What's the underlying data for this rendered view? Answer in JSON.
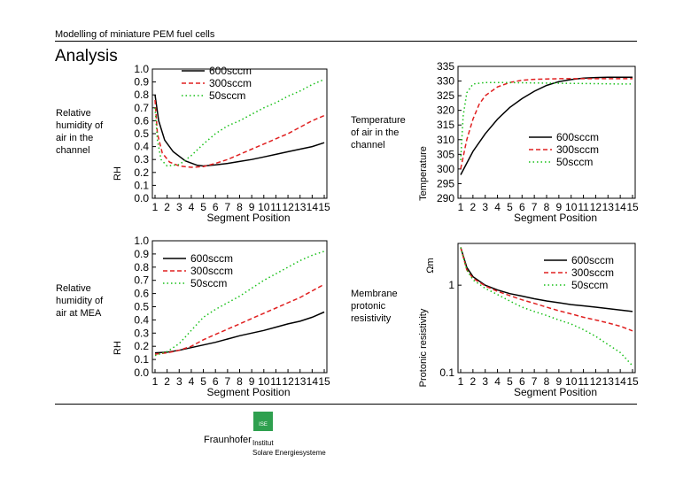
{
  "header": {
    "title": "Modelling of miniature PEM fuel cells",
    "section": "Analysis"
  },
  "descriptions": [
    "Relative\nhumidity of\nair in the\nchannel",
    "Temperature\nof air in the\nchannel",
    "Relative\nhumidity of\nair at MEA",
    "Membrane\nprotonic\nresistivity"
  ],
  "footer": {
    "brand": "Fraunhofer",
    "logo_text": "ISE",
    "institute_line1": "Institut",
    "institute_line2": "Solare Energiesysteme"
  },
  "chart_data": [
    {
      "type": "line",
      "xlabel": "Segment Position",
      "ylabel": "RH",
      "x": [
        1,
        2,
        3,
        4,
        5,
        6,
        7,
        8,
        9,
        10,
        11,
        12,
        13,
        14,
        15
      ],
      "ylim": [
        0,
        1
      ],
      "yticks": [
        0,
        0.1,
        0.2,
        0.3,
        0.4,
        0.5,
        0.6,
        0.7,
        0.8,
        0.9,
        1.0
      ],
      "ytick_labels": [
        "0.0",
        "0.1",
        "0.2",
        "0.3",
        "0.4",
        "0.5",
        "0.6",
        "0.7",
        "0.8",
        "0.9",
        "1.0"
      ],
      "legend": "top-right",
      "series": [
        {
          "name": "600sccm",
          "color": "#000000",
          "dash": "",
          "points": [
            [
              1,
              0.8
            ],
            [
              1.3,
              0.6
            ],
            [
              1.8,
              0.45
            ],
            [
              2.5,
              0.36
            ],
            [
              3.5,
              0.29
            ],
            [
              4.5,
              0.255
            ],
            [
              5,
              0.25
            ],
            [
              6,
              0.258
            ],
            [
              7,
              0.27
            ],
            [
              8,
              0.285
            ],
            [
              9,
              0.3
            ],
            [
              10,
              0.32
            ],
            [
              11,
              0.34
            ],
            [
              12,
              0.36
            ],
            [
              13,
              0.38
            ],
            [
              14,
              0.4
            ],
            [
              15,
              0.43
            ]
          ]
        },
        {
          "name": "300sccm",
          "color": "#e02020",
          "dash": "5,3",
          "points": [
            [
              1,
              0.76
            ],
            [
              1.2,
              0.5
            ],
            [
              1.6,
              0.35
            ],
            [
              2.2,
              0.28
            ],
            [
              3,
              0.25
            ],
            [
              4,
              0.24
            ],
            [
              5,
              0.245
            ],
            [
              6,
              0.27
            ],
            [
              7,
              0.3
            ],
            [
              8,
              0.34
            ],
            [
              9,
              0.38
            ],
            [
              10,
              0.42
            ],
            [
              11,
              0.46
            ],
            [
              12,
              0.5
            ],
            [
              13,
              0.55
            ],
            [
              14,
              0.6
            ],
            [
              15,
              0.64
            ]
          ]
        },
        {
          "name": "50sccm",
          "color": "#18c018",
          "dash": "1.5,3",
          "points": [
            [
              1,
              0.7
            ],
            [
              1.2,
              0.45
            ],
            [
              1.5,
              0.3
            ],
            [
              2,
              0.25
            ],
            [
              3,
              0.26
            ],
            [
              4,
              0.33
            ],
            [
              5,
              0.42
            ],
            [
              6,
              0.5
            ],
            [
              7,
              0.56
            ],
            [
              8,
              0.6
            ],
            [
              9,
              0.65
            ],
            [
              10,
              0.7
            ],
            [
              11,
              0.74
            ],
            [
              12,
              0.79
            ],
            [
              13,
              0.83
            ],
            [
              14,
              0.88
            ],
            [
              15,
              0.92
            ]
          ]
        }
      ]
    },
    {
      "type": "line",
      "xlabel": "Segment Position",
      "ylabel": "Temperature",
      "x": [
        1,
        2,
        3,
        4,
        5,
        6,
        7,
        8,
        9,
        10,
        11,
        12,
        13,
        14,
        15
      ],
      "ylim": [
        290,
        335
      ],
      "yticks": [
        290,
        295,
        300,
        305,
        310,
        315,
        320,
        325,
        330,
        335
      ],
      "ytick_labels": [
        "290",
        "295",
        "300",
        "305",
        "310",
        "315",
        "320",
        "325",
        "330",
        "335"
      ],
      "legend": "bottom-right",
      "series": [
        {
          "name": "600sccm",
          "color": "#000000",
          "dash": "",
          "points": [
            [
              1,
              298
            ],
            [
              2,
              306
            ],
            [
              3,
              312
            ],
            [
              4,
              317
            ],
            [
              5,
              321
            ],
            [
              6,
              324
            ],
            [
              7,
              326.5
            ],
            [
              8,
              328.5
            ],
            [
              9,
              329.8
            ],
            [
              10,
              330.5
            ],
            [
              11,
              331
            ],
            [
              12,
              331.2
            ],
            [
              13,
              331.3
            ],
            [
              14,
              331.3
            ],
            [
              15,
              331.3
            ]
          ]
        },
        {
          "name": "300sccm",
          "color": "#e02020",
          "dash": "5,3",
          "points": [
            [
              1,
              300
            ],
            [
              1.5,
              310
            ],
            [
              2,
              317
            ],
            [
              2.5,
              322
            ],
            [
              3,
              325
            ],
            [
              4,
              328
            ],
            [
              5,
              329.5
            ],
            [
              6,
              330.3
            ],
            [
              7,
              330.6
            ],
            [
              8,
              330.7
            ],
            [
              9,
              330.8
            ],
            [
              10,
              330.8
            ],
            [
              11,
              330.8
            ],
            [
              12,
              330.8
            ],
            [
              13,
              330.8
            ],
            [
              14,
              330.8
            ],
            [
              15,
              330.8
            ]
          ]
        },
        {
          "name": "50sccm",
          "color": "#18c018",
          "dash": "1.5,3",
          "points": [
            [
              1,
              303
            ],
            [
              1.2,
              318
            ],
            [
              1.5,
              326
            ],
            [
              2,
              329
            ],
            [
              3,
              329.5
            ],
            [
              4,
              329.5
            ],
            [
              6,
              329.4
            ],
            [
              8,
              329.3
            ],
            [
              10,
              329.2
            ],
            [
              12,
              329.1
            ],
            [
              14,
              329
            ],
            [
              15,
              329
            ]
          ]
        }
      ]
    },
    {
      "type": "line",
      "xlabel": "Segment Position",
      "ylabel": "RH",
      "x": [
        1,
        2,
        3,
        4,
        5,
        6,
        7,
        8,
        9,
        10,
        11,
        12,
        13,
        14,
        15
      ],
      "ylim": [
        0,
        1
      ],
      "yticks": [
        0,
        0.1,
        0.2,
        0.3,
        0.4,
        0.5,
        0.6,
        0.7,
        0.8,
        0.9,
        1.0
      ],
      "ytick_labels": [
        "0.0",
        "0.1",
        "0.2",
        "0.3",
        "0.4",
        "0.5",
        "0.6",
        "0.7",
        "0.8",
        "0.9",
        "1.0"
      ],
      "legend": "top-left",
      "series": [
        {
          "name": "600sccm",
          "color": "#000000",
          "dash": "",
          "points": [
            [
              1,
              0.15
            ],
            [
              2,
              0.155
            ],
            [
              3,
              0.17
            ],
            [
              4,
              0.19
            ],
            [
              5,
              0.21
            ],
            [
              6,
              0.23
            ],
            [
              7,
              0.255
            ],
            [
              8,
              0.28
            ],
            [
              9,
              0.3
            ],
            [
              10,
              0.32
            ],
            [
              11,
              0.345
            ],
            [
              12,
              0.37
            ],
            [
              13,
              0.39
            ],
            [
              14,
              0.42
            ],
            [
              15,
              0.46
            ]
          ]
        },
        {
          "name": "300sccm",
          "color": "#e02020",
          "dash": "5,3",
          "points": [
            [
              1,
              0.14
            ],
            [
              2,
              0.15
            ],
            [
              3,
              0.17
            ],
            [
              4,
              0.2
            ],
            [
              5,
              0.25
            ],
            [
              6,
              0.29
            ],
            [
              7,
              0.33
            ],
            [
              8,
              0.37
            ],
            [
              9,
              0.41
            ],
            [
              10,
              0.45
            ],
            [
              11,
              0.49
            ],
            [
              12,
              0.53
            ],
            [
              13,
              0.57
            ],
            [
              14,
              0.62
            ],
            [
              15,
              0.67
            ]
          ]
        },
        {
          "name": "50sccm",
          "color": "#18c018",
          "dash": "1.5,3",
          "points": [
            [
              1,
              0.13
            ],
            [
              2,
              0.16
            ],
            [
              3,
              0.22
            ],
            [
              4,
              0.32
            ],
            [
              5,
              0.42
            ],
            [
              6,
              0.48
            ],
            [
              7,
              0.53
            ],
            [
              8,
              0.58
            ],
            [
              9,
              0.64
            ],
            [
              10,
              0.7
            ],
            [
              11,
              0.75
            ],
            [
              12,
              0.8
            ],
            [
              13,
              0.85
            ],
            [
              14,
              0.89
            ],
            [
              15,
              0.92
            ]
          ]
        }
      ]
    },
    {
      "type": "line",
      "xlabel": "Segment Position",
      "ylabel": "Protonic resistivity",
      "yunit": "Ωm",
      "yscale": "log",
      "x": [
        1,
        2,
        3,
        4,
        5,
        6,
        7,
        8,
        9,
        10,
        11,
        12,
        13,
        14,
        15
      ],
      "ylim": [
        0.1,
        3
      ],
      "yticks": [
        0.1,
        1
      ],
      "ytick_labels": [
        "0.1",
        "1"
      ],
      "legend": "top-right",
      "series": [
        {
          "name": "600sccm",
          "color": "#000000",
          "dash": "",
          "points": [
            [
              1,
              2.7
            ],
            [
              1.5,
              1.6
            ],
            [
              2,
              1.25
            ],
            [
              3,
              1.0
            ],
            [
              4,
              0.88
            ],
            [
              5,
              0.8
            ],
            [
              6,
              0.75
            ],
            [
              7,
              0.7
            ],
            [
              8,
              0.66
            ],
            [
              9,
              0.63
            ],
            [
              10,
              0.6
            ],
            [
              11,
              0.58
            ],
            [
              12,
              0.56
            ],
            [
              13,
              0.54
            ],
            [
              14,
              0.52
            ],
            [
              15,
              0.5
            ]
          ]
        },
        {
          "name": "300sccm",
          "color": "#e02020",
          "dash": "5,3",
          "points": [
            [
              1,
              2.7
            ],
            [
              1.5,
              1.5
            ],
            [
              2,
              1.2
            ],
            [
              3,
              0.98
            ],
            [
              4,
              0.85
            ],
            [
              5,
              0.76
            ],
            [
              6,
              0.68
            ],
            [
              7,
              0.62
            ],
            [
              8,
              0.56
            ],
            [
              9,
              0.51
            ],
            [
              10,
              0.47
            ],
            [
              11,
              0.43
            ],
            [
              12,
              0.4
            ],
            [
              13,
              0.37
            ],
            [
              14,
              0.34
            ],
            [
              15,
              0.3
            ]
          ]
        },
        {
          "name": "50sccm",
          "color": "#18c018",
          "dash": "1.5,3",
          "points": [
            [
              1,
              2.7
            ],
            [
              1.5,
              1.5
            ],
            [
              2,
              1.15
            ],
            [
              3,
              0.92
            ],
            [
              4,
              0.78
            ],
            [
              5,
              0.66
            ],
            [
              6,
              0.56
            ],
            [
              7,
              0.5
            ],
            [
              8,
              0.45
            ],
            [
              9,
              0.4
            ],
            [
              10,
              0.36
            ],
            [
              11,
              0.31
            ],
            [
              12,
              0.26
            ],
            [
              13,
              0.21
            ],
            [
              14,
              0.17
            ],
            [
              15,
              0.12
            ]
          ]
        }
      ]
    }
  ]
}
